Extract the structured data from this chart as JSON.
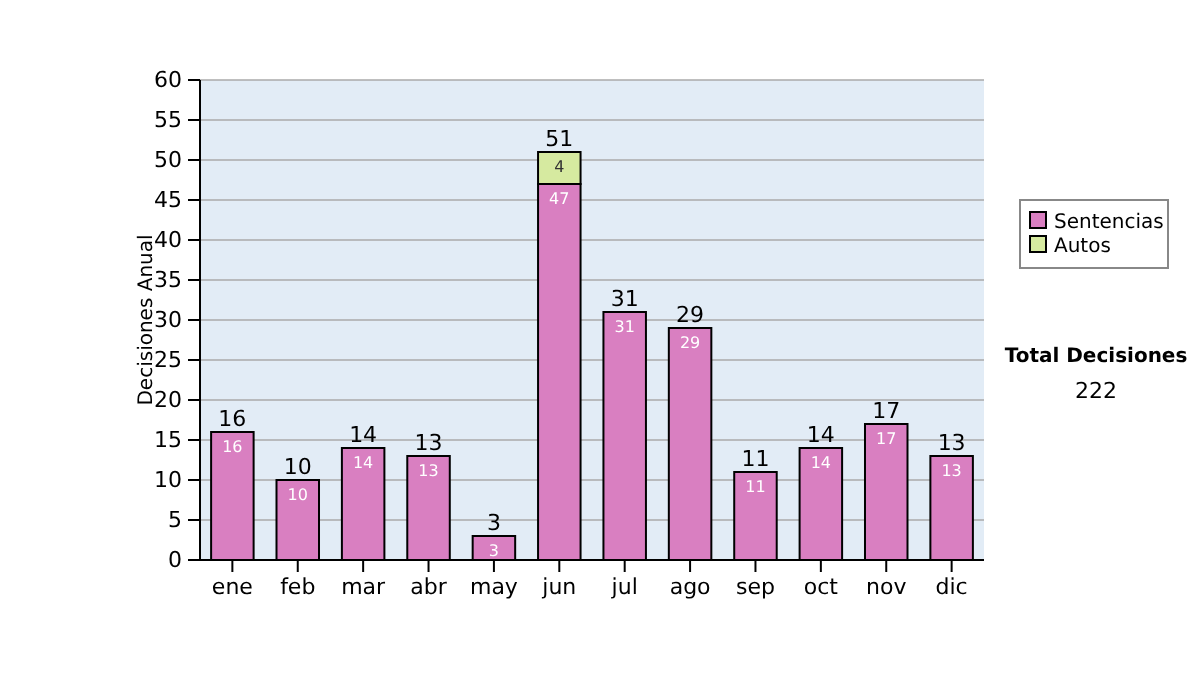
{
  "chart_data": {
    "type": "bar",
    "stacked": true,
    "ylabel": "Decisiones Anual",
    "categories": [
      "ene",
      "feb",
      "mar",
      "abr",
      "may",
      "jun",
      "jul",
      "ago",
      "sep",
      "oct",
      "nov",
      "dic"
    ],
    "series": [
      {
        "name": "Sentencias",
        "color": "#d97fc1",
        "values": [
          16,
          10,
          14,
          13,
          3,
          47,
          31,
          29,
          11,
          14,
          17,
          13
        ],
        "value_labels": [
          "16",
          "10",
          "14",
          "13",
          "3",
          "47",
          "31",
          "29",
          "11",
          "14",
          "17",
          "13"
        ]
      },
      {
        "name": "Autos",
        "color": "#d6eaa0",
        "values": [
          0,
          0,
          0,
          0,
          0,
          4,
          0,
          0,
          0,
          0,
          0,
          0
        ],
        "value_labels": [
          null,
          null,
          null,
          null,
          null,
          "4",
          null,
          null,
          null,
          null,
          null,
          null
        ]
      }
    ],
    "totals": [
      "16",
      "10",
      "14",
      "13",
      "3",
      "51",
      "31",
      "29",
      "11",
      "14",
      "17",
      "13"
    ],
    "ylim": [
      0,
      60
    ],
    "yticks": [
      0,
      5,
      10,
      15,
      20,
      25,
      30,
      35,
      40,
      45,
      50,
      55,
      60
    ],
    "grid": "y",
    "legend": "right",
    "annotations": [
      "Total Decisiones",
      "222"
    ]
  }
}
